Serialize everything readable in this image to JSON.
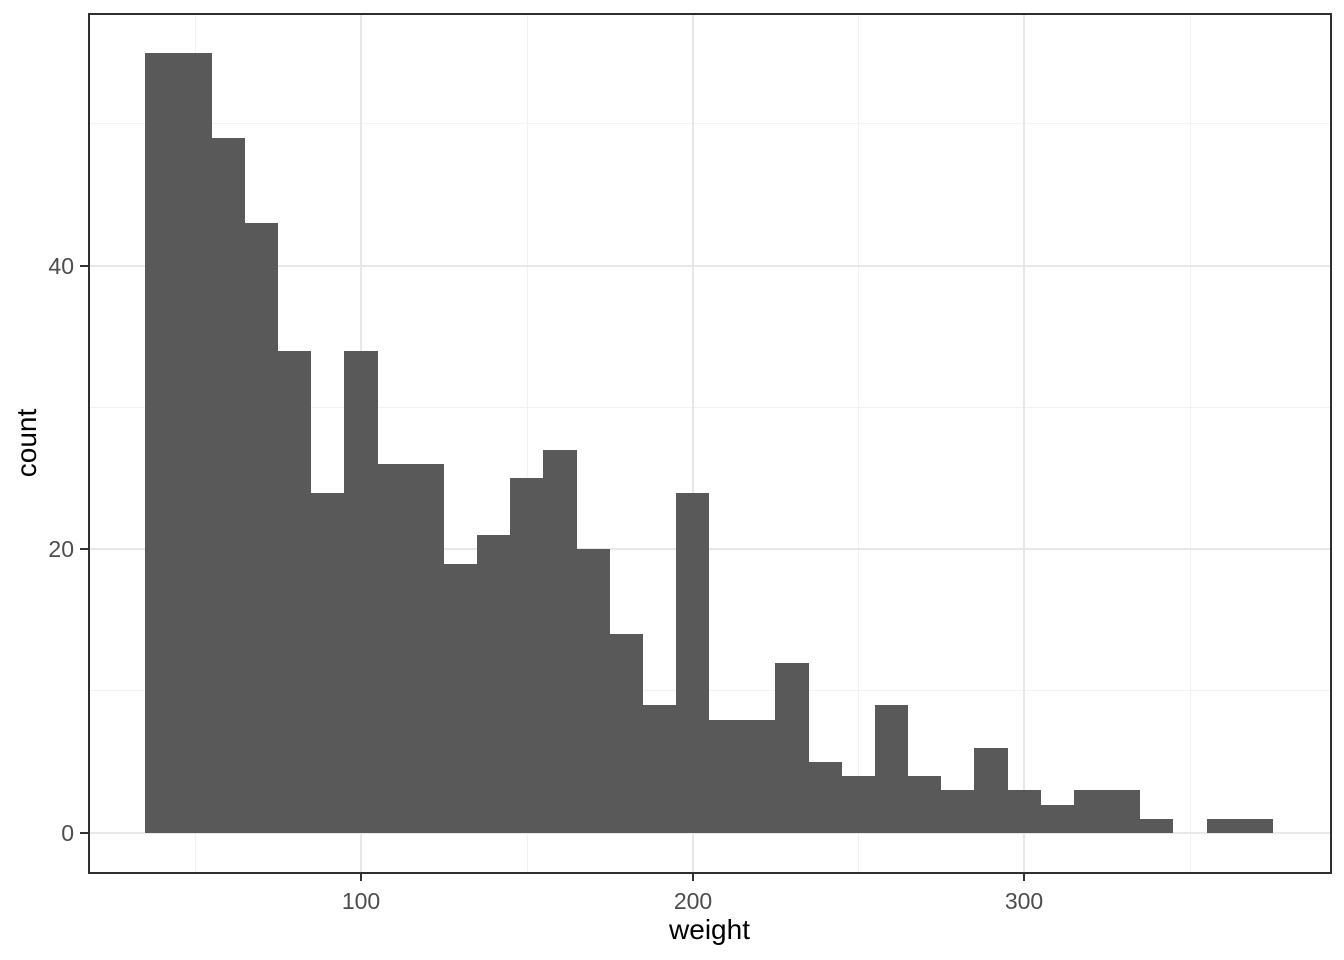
{
  "chart_data": {
    "type": "bar",
    "subtype": "histogram",
    "title": "",
    "xlabel": "weight",
    "ylabel": "count",
    "bin_width": 10,
    "bin_start": 35,
    "bin_end": 375,
    "bins": [
      {
        "x0": 35,
        "x1": 45,
        "n": 55
      },
      {
        "x0": 45,
        "x1": 55,
        "n": 55
      },
      {
        "x0": 55,
        "x1": 65,
        "n": 49
      },
      {
        "x0": 65,
        "x1": 75,
        "n": 43
      },
      {
        "x0": 75,
        "x1": 85,
        "n": 34
      },
      {
        "x0": 85,
        "x1": 95,
        "n": 24
      },
      {
        "x0": 95,
        "x1": 105,
        "n": 34
      },
      {
        "x0": 105,
        "x1": 115,
        "n": 26
      },
      {
        "x0": 115,
        "x1": 125,
        "n": 26
      },
      {
        "x0": 125,
        "x1": 135,
        "n": 19
      },
      {
        "x0": 135,
        "x1": 145,
        "n": 21
      },
      {
        "x0": 145,
        "x1": 155,
        "n": 25
      },
      {
        "x0": 155,
        "x1": 165,
        "n": 27
      },
      {
        "x0": 165,
        "x1": 175,
        "n": 20
      },
      {
        "x0": 175,
        "x1": 185,
        "n": 14
      },
      {
        "x0": 185,
        "x1": 195,
        "n": 9
      },
      {
        "x0": 195,
        "x1": 205,
        "n": 24
      },
      {
        "x0": 205,
        "x1": 215,
        "n": 8
      },
      {
        "x0": 215,
        "x1": 225,
        "n": 8
      },
      {
        "x0": 225,
        "x1": 235,
        "n": 12
      },
      {
        "x0": 235,
        "x1": 245,
        "n": 5
      },
      {
        "x0": 245,
        "x1": 255,
        "n": 4
      },
      {
        "x0": 255,
        "x1": 265,
        "n": 9
      },
      {
        "x0": 265,
        "x1": 275,
        "n": 4
      },
      {
        "x0": 275,
        "x1": 285,
        "n": 3
      },
      {
        "x0": 285,
        "x1": 295,
        "n": 6
      },
      {
        "x0": 295,
        "x1": 305,
        "n": 3
      },
      {
        "x0": 305,
        "x1": 315,
        "n": 2
      },
      {
        "x0": 315,
        "x1": 325,
        "n": 3
      },
      {
        "x0": 325,
        "x1": 335,
        "n": 3
      },
      {
        "x0": 335,
        "x1": 345,
        "n": 1
      },
      {
        "x0": 345,
        "x1": 355,
        "n": 0
      },
      {
        "x0": 355,
        "x1": 365,
        "n": 1
      },
      {
        "x0": 365,
        "x1": 375,
        "n": 1
      }
    ],
    "x_ticks": {
      "values": [
        100,
        200,
        300
      ],
      "labels": [
        "100",
        "200",
        "300"
      ]
    },
    "y_ticks": {
      "values": [
        0,
        20,
        40
      ],
      "labels": [
        "0",
        "20",
        "40"
      ]
    },
    "x_grid_minor": [
      50,
      150,
      250,
      350
    ],
    "y_grid_minor": [
      10,
      30,
      50
    ],
    "x_domain": [
      18,
      392.2
    ],
    "y_domain": [
      -2.75,
      57.75
    ],
    "legend": "none",
    "grid": "on",
    "colors": {
      "bar": "#595959",
      "grid_major": "#e8e8e8",
      "grid_minor": "#f2f2f2",
      "panel_border": "#2f2f2f",
      "tick": "#333333",
      "tick_label": "#4d4d4d",
      "axis_title": "#000000",
      "background": "#ffffff"
    }
  }
}
